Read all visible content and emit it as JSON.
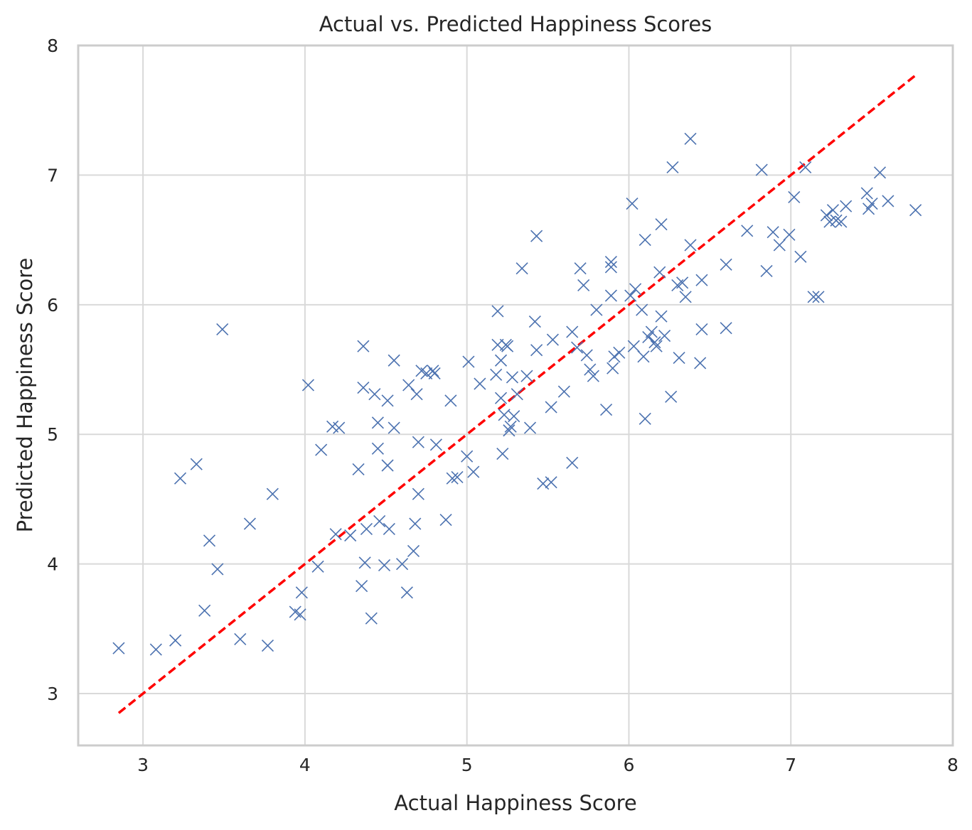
{
  "chart_data": {
    "type": "scatter",
    "title": "Actual vs. Predicted Happiness Scores",
    "xlabel": "Actual Happiness Score",
    "ylabel": "Predicted Happiness Score",
    "xlim": [
      2.6,
      8.0
    ],
    "ylim": [
      2.6,
      8.0
    ],
    "xticks": [
      3,
      4,
      5,
      6,
      7,
      8
    ],
    "yticks": [
      3,
      4,
      5,
      6,
      7,
      8
    ],
    "xtick_labels": [
      "3",
      "4",
      "5",
      "6",
      "7",
      "8"
    ],
    "ytick_labels": [
      "3",
      "4",
      "5",
      "6",
      "7",
      "8"
    ],
    "grid": true,
    "marker": "x",
    "marker_color": "#4c72b0",
    "reference_line": {
      "x": [
        2.85,
        7.77
      ],
      "y": [
        2.85,
        7.77
      ],
      "color": "#ff0000",
      "style": "dashed"
    },
    "points": [
      [
        2.85,
        3.35
      ],
      [
        3.08,
        3.34
      ],
      [
        3.2,
        3.41
      ],
      [
        3.23,
        4.66
      ],
      [
        3.33,
        4.77
      ],
      [
        3.38,
        3.64
      ],
      [
        3.41,
        4.18
      ],
      [
        3.46,
        3.96
      ],
      [
        3.49,
        5.81
      ],
      [
        3.6,
        3.42
      ],
      [
        3.66,
        4.31
      ],
      [
        3.77,
        3.37
      ],
      [
        3.8,
        4.54
      ],
      [
        3.94,
        3.63
      ],
      [
        3.97,
        3.61
      ],
      [
        3.98,
        3.78
      ],
      [
        4.02,
        5.38
      ],
      [
        4.08,
        3.98
      ],
      [
        4.1,
        4.88
      ],
      [
        4.17,
        5.06
      ],
      [
        4.19,
        4.23
      ],
      [
        4.21,
        5.05
      ],
      [
        4.28,
        4.22
      ],
      [
        4.33,
        4.73
      ],
      [
        4.35,
        3.83
      ],
      [
        4.36,
        5.36
      ],
      [
        4.36,
        5.68
      ],
      [
        4.37,
        4.01
      ],
      [
        4.38,
        4.27
      ],
      [
        4.41,
        3.58
      ],
      [
        4.43,
        5.31
      ],
      [
        4.45,
        5.09
      ],
      [
        4.45,
        4.89
      ],
      [
        4.46,
        4.33
      ],
      [
        4.49,
        3.99
      ],
      [
        4.51,
        4.76
      ],
      [
        4.51,
        5.26
      ],
      [
        4.52,
        4.27
      ],
      [
        4.55,
        5.57
      ],
      [
        4.55,
        5.05
      ],
      [
        4.6,
        4.0
      ],
      [
        4.63,
        3.78
      ],
      [
        4.64,
        5.38
      ],
      [
        4.67,
        4.1
      ],
      [
        4.68,
        4.31
      ],
      [
        4.69,
        5.31
      ],
      [
        4.7,
        4.94
      ],
      [
        4.7,
        4.54
      ],
      [
        4.72,
        5.49
      ],
      [
        4.75,
        5.47
      ],
      [
        4.79,
        5.49
      ],
      [
        4.8,
        5.47
      ],
      [
        4.81,
        4.92
      ],
      [
        4.87,
        4.34
      ],
      [
        4.9,
        5.26
      ],
      [
        4.91,
        4.66
      ],
      [
        4.94,
        4.67
      ],
      [
        5.0,
        4.83
      ],
      [
        5.01,
        5.56
      ],
      [
        5.04,
        4.71
      ],
      [
        5.08,
        5.39
      ],
      [
        5.18,
        5.46
      ],
      [
        5.19,
        5.95
      ],
      [
        5.19,
        5.69
      ],
      [
        5.21,
        5.57
      ],
      [
        5.21,
        5.28
      ],
      [
        5.22,
        4.85
      ],
      [
        5.23,
        5.15
      ],
      [
        5.24,
        5.69
      ],
      [
        5.25,
        5.68
      ],
      [
        5.26,
        5.03
      ],
      [
        5.27,
        5.06
      ],
      [
        5.28,
        5.44
      ],
      [
        5.29,
        5.14
      ],
      [
        5.31,
        5.31
      ],
      [
        5.34,
        6.28
      ],
      [
        5.37,
        5.45
      ],
      [
        5.39,
        5.05
      ],
      [
        5.42,
        5.87
      ],
      [
        5.43,
        5.65
      ],
      [
        5.43,
        6.53
      ],
      [
        5.47,
        4.62
      ],
      [
        5.52,
        4.63
      ],
      [
        5.52,
        5.21
      ],
      [
        5.53,
        5.73
      ],
      [
        5.6,
        5.33
      ],
      [
        5.65,
        5.79
      ],
      [
        5.65,
        4.78
      ],
      [
        5.68,
        5.67
      ],
      [
        5.7,
        6.28
      ],
      [
        5.72,
        6.15
      ],
      [
        5.74,
        5.61
      ],
      [
        5.76,
        5.5
      ],
      [
        5.78,
        5.45
      ],
      [
        5.8,
        5.96
      ],
      [
        5.86,
        5.19
      ],
      [
        5.89,
        6.29
      ],
      [
        5.89,
        6.33
      ],
      [
        5.89,
        6.07
      ],
      [
        5.9,
        5.51
      ],
      [
        5.91,
        5.6
      ],
      [
        5.94,
        5.63
      ],
      [
        6.01,
        6.07
      ],
      [
        6.02,
        6.78
      ],
      [
        6.03,
        5.68
      ],
      [
        6.04,
        6.12
      ],
      [
        6.08,
        5.96
      ],
      [
        6.09,
        5.6
      ],
      [
        6.1,
        5.12
      ],
      [
        6.1,
        6.5
      ],
      [
        6.12,
        5.75
      ],
      [
        6.14,
        5.79
      ],
      [
        6.16,
        5.71
      ],
      [
        6.17,
        5.68
      ],
      [
        6.19,
        6.25
      ],
      [
        6.2,
        5.91
      ],
      [
        6.2,
        6.62
      ],
      [
        6.22,
        5.76
      ],
      [
        6.26,
        5.29
      ],
      [
        6.27,
        7.06
      ],
      [
        6.3,
        6.15
      ],
      [
        6.31,
        5.59
      ],
      [
        6.33,
        6.17
      ],
      [
        6.35,
        6.06
      ],
      [
        6.38,
        7.28
      ],
      [
        6.38,
        6.46
      ],
      [
        6.44,
        5.55
      ],
      [
        6.45,
        5.81
      ],
      [
        6.45,
        6.19
      ],
      [
        6.6,
        6.31
      ],
      [
        6.6,
        5.82
      ],
      [
        6.73,
        6.57
      ],
      [
        6.82,
        7.04
      ],
      [
        6.85,
        6.26
      ],
      [
        6.89,
        6.56
      ],
      [
        6.93,
        6.46
      ],
      [
        6.99,
        6.54
      ],
      [
        7.02,
        6.83
      ],
      [
        7.06,
        6.37
      ],
      [
        7.09,
        7.06
      ],
      [
        7.14,
        6.06
      ],
      [
        7.17,
        6.06
      ],
      [
        7.22,
        6.69
      ],
      [
        7.24,
        6.64
      ],
      [
        7.26,
        6.73
      ],
      [
        7.28,
        6.65
      ],
      [
        7.31,
        6.64
      ],
      [
        7.34,
        6.76
      ],
      [
        7.47,
        6.86
      ],
      [
        7.48,
        6.74
      ],
      [
        7.5,
        6.78
      ],
      [
        7.55,
        7.02
      ],
      [
        7.6,
        6.8
      ],
      [
        7.77,
        6.73
      ]
    ]
  }
}
